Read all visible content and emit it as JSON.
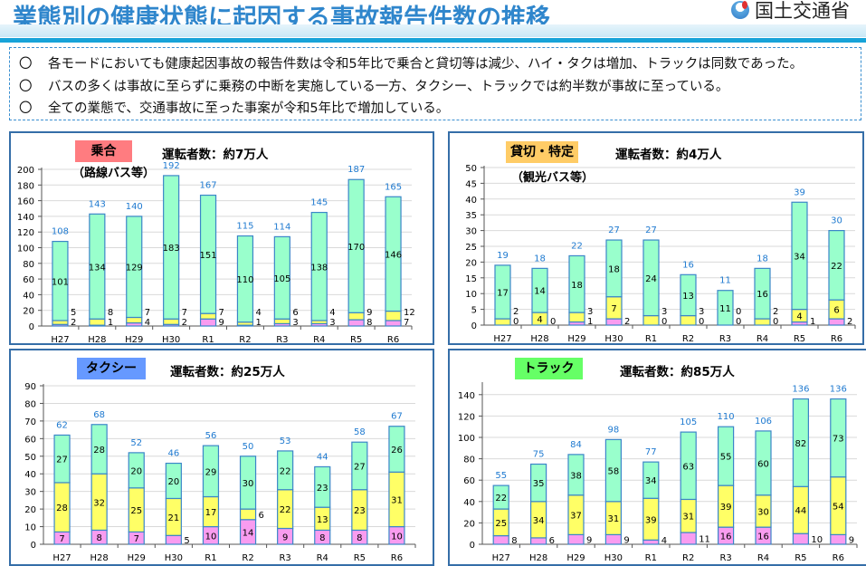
{
  "header": {
    "title": "業態別の健康状態に起因する事故報告件数の推移",
    "logo_text": "国土交通省"
  },
  "bullets": {
    "mark": "〇",
    "items": [
      "各モードにおいても健康起因事故の報告件数は令和5年比で乗合と貸切等は減少、ハイ・タクは増加、トラックは同数であった。",
      "バスの多くは事故に至らずに乗務の中断を実施している一方、タクシー、トラックでは約半数が事故に至っている。",
      "全ての業態で、交通事故に至った事案が令和5年比で増加している。"
    ]
  },
  "colors": {
    "series": [
      "#f99cf0",
      "#ffff66",
      "#99ffcc"
    ],
    "bar_border": "#3b86c8",
    "total_label": "#1f7ad0"
  },
  "chart_data": [
    {
      "type": "bar",
      "stacked": true,
      "category": "乗合",
      "category_color": "#ff7c80",
      "subtitle": "（路線バス等）",
      "drivers": "運転者数：約7万人",
      "categories": [
        "H27",
        "H28",
        "H29",
        "H30",
        "R1",
        "R2",
        "R3",
        "R4",
        "R5",
        "R6"
      ],
      "series": [
        {
          "values": [
            2,
            1,
            4,
            2,
            9,
            1,
            3,
            3,
            8,
            7
          ]
        },
        {
          "values": [
            5,
            8,
            7,
            7,
            7,
            4,
            6,
            4,
            9,
            12
          ]
        },
        {
          "values": [
            101,
            134,
            129,
            183,
            151,
            110,
            105,
            138,
            170,
            146
          ]
        }
      ],
      "totals": [
        108,
        143,
        140,
        192,
        167,
        115,
        114,
        145,
        187,
        165
      ],
      "ylim": [
        0,
        200
      ],
      "yticks": [
        0,
        20,
        40,
        60,
        80,
        100,
        120,
        140,
        160,
        180,
        200
      ],
      "grid": true
    },
    {
      "type": "bar",
      "stacked": true,
      "category": "貸切・特定",
      "category_color": "#ffcc66",
      "subtitle": "（観光バス等）",
      "drivers": "運転者数：約4万人",
      "categories": [
        "H27",
        "H28",
        "H29",
        "H30",
        "R1",
        "R2",
        "R3",
        "R4",
        "R5",
        "R6"
      ],
      "series": [
        {
          "values": [
            0,
            0,
            1,
            2,
            0,
            0,
            0,
            0,
            1,
            2
          ]
        },
        {
          "values": [
            2,
            4,
            3,
            7,
            3,
            3,
            0,
            2,
            4,
            6
          ]
        },
        {
          "values": [
            17,
            14,
            18,
            18,
            24,
            13,
            11,
            16,
            34,
            22
          ]
        }
      ],
      "totals": [
        19,
        18,
        22,
        27,
        27,
        16,
        11,
        18,
        39,
        30
      ],
      "ylim": [
        0,
        50
      ],
      "yticks": [
        0,
        5,
        10,
        15,
        20,
        25,
        30,
        35,
        40,
        45,
        50
      ],
      "grid": true
    },
    {
      "type": "bar",
      "stacked": true,
      "category": "タクシー",
      "category_color": "#6699ff",
      "subtitle": "",
      "drivers": "運転者数：約25万人",
      "categories": [
        "H27",
        "H28",
        "H29",
        "H30",
        "R1",
        "R2",
        "R3",
        "R4",
        "R5",
        "R6"
      ],
      "series": [
        {
          "values": [
            7,
            8,
            7,
            5,
            10,
            14,
            9,
            8,
            8,
            10
          ]
        },
        {
          "values": [
            28,
            32,
            25,
            21,
            17,
            6,
            22,
            13,
            23,
            31
          ]
        },
        {
          "values": [
            27,
            28,
            20,
            20,
            29,
            30,
            22,
            23,
            27,
            26
          ]
        }
      ],
      "totals": [
        62,
        68,
        52,
        46,
        56,
        50,
        53,
        44,
        58,
        67
      ],
      "ylim": [
        0,
        90
      ],
      "yticks": [
        0,
        10,
        20,
        30,
        40,
        50,
        60,
        70,
        80,
        90
      ],
      "grid": true
    },
    {
      "type": "bar",
      "stacked": true,
      "category": "トラック",
      "category_color": "#66ff66",
      "subtitle": "",
      "drivers": "運転者数：約85万人",
      "categories": [
        "H27",
        "H28",
        "H29",
        "H30",
        "R1",
        "R2",
        "R3",
        "R4",
        "R5",
        "R6"
      ],
      "series": [
        {
          "values": [
            8,
            6,
            9,
            9,
            4,
            11,
            16,
            16,
            10,
            9
          ]
        },
        {
          "values": [
            25,
            34,
            37,
            31,
            39,
            31,
            39,
            30,
            44,
            54
          ]
        },
        {
          "values": [
            22,
            35,
            38,
            58,
            34,
            63,
            55,
            60,
            82,
            73
          ]
        }
      ],
      "totals": [
        55,
        75,
        84,
        98,
        77,
        105,
        110,
        106,
        136,
        136
      ],
      "ylim": [
        0,
        150
      ],
      "yticks": [
        0,
        20,
        40,
        60,
        80,
        100,
        120,
        140
      ],
      "grid": true
    }
  ]
}
